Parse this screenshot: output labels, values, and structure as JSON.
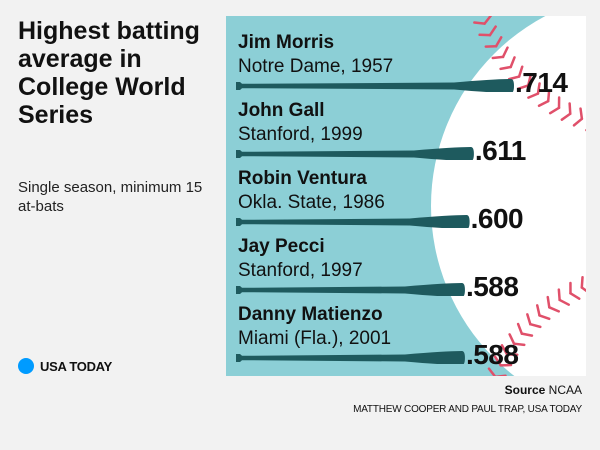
{
  "title": "Highest batting average in College World Series",
  "subtitle": "Single season, minimum 15 at-bats",
  "logo_text": "USA TODAY",
  "source_label": "Source",
  "source_value": "NCAA",
  "credit": "MATTHEW COOPER AND PAUL TRAP, USA TODAY",
  "colors": {
    "background": "#f2f2f2",
    "panel": "#8ccfd6",
    "bar": "#1e5a5e",
    "stitch": "#e0506a",
    "ball": "#ffffff",
    "logo": "#009bff"
  },
  "chart_data": {
    "type": "bar",
    "orientation": "horizontal",
    "value_format": ".3f without leading zero",
    "categories": [
      "Jim Morris",
      "John Gall",
      "Robin Ventura",
      "Jay Pecci",
      "Danny Matienzo"
    ],
    "details": [
      "Notre Dame, 1957",
      "Stanford, 1999",
      "Okla. State, 1986",
      "Stanford, 1997",
      "Miami (Fla.), 2001"
    ],
    "values": [
      0.714,
      0.611,
      0.6,
      0.588,
      0.588
    ],
    "value_labels": [
      ".714",
      ".611",
      ".600",
      ".588",
      ".588"
    ],
    "xlim": [
      0,
      0.714
    ]
  }
}
